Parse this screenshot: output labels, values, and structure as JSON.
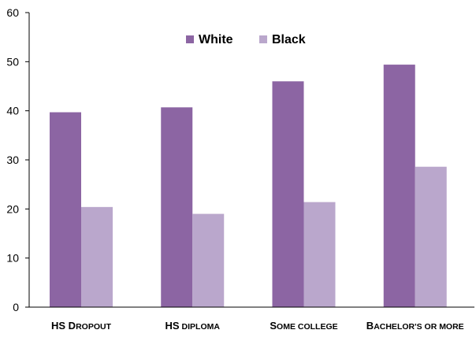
{
  "chart_data": {
    "type": "bar",
    "title": "",
    "xlabel": "",
    "ylabel": "",
    "ylim": [
      0,
      60
    ],
    "yticks": [
      0,
      10,
      20,
      30,
      40,
      50,
      60
    ],
    "grid": false,
    "legend_position": "top-center",
    "categories": [
      {
        "cap1": "HS D",
        "rest1": "ropout",
        "cap2": "",
        "rest2": ""
      },
      {
        "cap1": "HS",
        "rest1": " diploma",
        "cap2": "",
        "rest2": ""
      },
      {
        "cap1": "S",
        "rest1": "ome college",
        "cap2": "",
        "rest2": ""
      },
      {
        "cap1": "B",
        "rest1": "achelor's or more",
        "cap2": "",
        "rest2": ""
      }
    ],
    "category_names": [
      "HS Dropout",
      "HS diploma",
      "Some college",
      "Bachelor's or more"
    ],
    "series": [
      {
        "name": "White",
        "color": "#8c65a3",
        "values": [
          39.7,
          40.7,
          46.0,
          49.4
        ]
      },
      {
        "name": "Black",
        "color": "#baa7cc",
        "values": [
          20.4,
          19.0,
          21.4,
          28.6
        ]
      }
    ]
  }
}
